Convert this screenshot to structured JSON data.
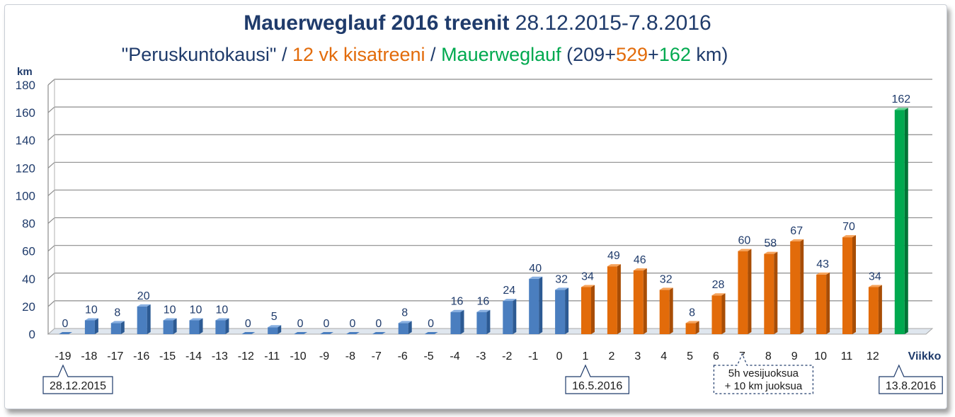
{
  "title": {
    "bold": "Mauerweglauf 2016 treenit",
    "normal": "28.12.2015-7.8.2016"
  },
  "subtitle": {
    "part1": "\"Peruskuntokausi\"",
    "sep1": " / ",
    "part2": "12 vk kisatreeni",
    "sep2": " / ",
    "part3": "Mauerweglauf",
    "sum_open": " (209+",
    "sum_orange": "529",
    "sum_plus": "+",
    "sum_green": "162",
    "sum_close": " km)"
  },
  "colors": {
    "blue": "#4a7ebf",
    "orange": "#e26b0a",
    "green": "#00a94f",
    "text_blue": "#1f3b6b",
    "text_orange": "#e26b0a",
    "text_green": "#00a94f",
    "label_blue": "#1f3b6b"
  },
  "chart_data": {
    "type": "bar",
    "ylabel": "km",
    "xlabel": "Viikko",
    "ylim": [
      0,
      180
    ],
    "yticks": [
      0,
      20,
      40,
      60,
      80,
      100,
      120,
      140,
      160,
      180
    ],
    "grid": true,
    "categories": [
      "-19",
      "-18",
      "-17",
      "-16",
      "-15",
      "-14",
      "-13",
      "-12",
      "-11",
      "-10",
      "-9",
      "-8",
      "-7",
      "-6",
      "-5",
      "-4",
      "-3",
      "-2",
      "-1",
      "0",
      "1",
      "2",
      "3",
      "4",
      "5",
      "6",
      "7",
      "8",
      "9",
      "10",
      "11",
      "12",
      ""
    ],
    "values": [
      0,
      10,
      8,
      20,
      10,
      10,
      10,
      0,
      5,
      0,
      0,
      0,
      0,
      8,
      0,
      16,
      16,
      24,
      40,
      32,
      34,
      49,
      46,
      32,
      8,
      28,
      60,
      58,
      67,
      43,
      70,
      34,
      162
    ],
    "phases": [
      "blue",
      "blue",
      "blue",
      "blue",
      "blue",
      "blue",
      "blue",
      "blue",
      "blue",
      "blue",
      "blue",
      "blue",
      "blue",
      "blue",
      "blue",
      "blue",
      "blue",
      "blue",
      "blue",
      "blue",
      "orange",
      "orange",
      "orange",
      "orange",
      "orange",
      "orange",
      "orange",
      "orange",
      "orange",
      "orange",
      "orange",
      "orange",
      "green"
    ],
    "annotations": [
      {
        "text": "28.12.2015",
        "index": 0
      },
      {
        "text": "16.5.2016",
        "index": 20
      },
      {
        "text": "5h vesijuoksua",
        "text2": "+ 10 km juoksua",
        "index": 26,
        "dashed": true
      },
      {
        "text": "13.8.2016",
        "index": 32
      }
    ]
  }
}
